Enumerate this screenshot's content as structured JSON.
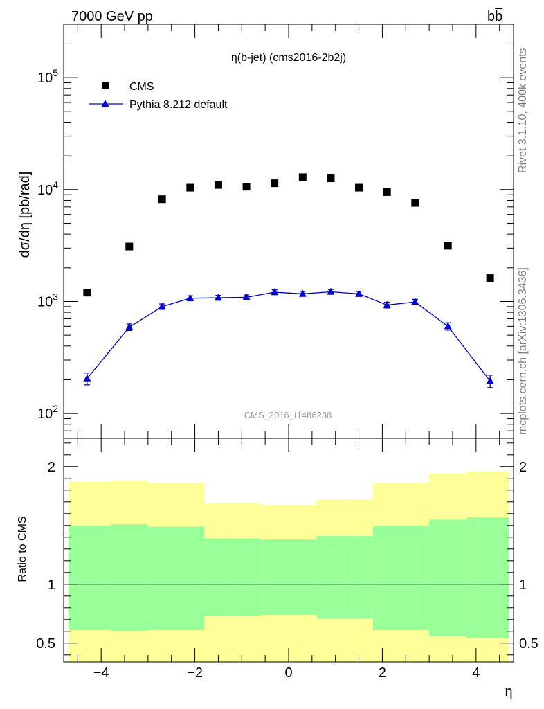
{
  "header": {
    "left": "7000 GeV pp",
    "right_b": "b",
    "right_bbar": "b"
  },
  "side_text": {
    "top": "Rivet 3.1.10,  400k events",
    "bottom": "mcplots.cern.ch [arXiv:1306.3436]"
  },
  "colors": {
    "cms": "#000000",
    "pythia": "#0000cc",
    "band_inner": "#99ff99",
    "band_outer": "#ffff99"
  },
  "chart_data": [
    {
      "type": "scatter",
      "title": "η(b-jet) (cms2016-2b2j)",
      "watermark": "CMS_2016_I1486238",
      "ylabel": "dσ/dη [pb/rad]",
      "yscale": "log",
      "xlim": [
        -4.8,
        4.8
      ],
      "ylim": [
        60,
        300000
      ],
      "yticks": [
        {
          "value": 100,
          "base": "10",
          "exp": "2"
        },
        {
          "value": 1000,
          "base": "10",
          "exp": "3"
        },
        {
          "value": 10000,
          "base": "10",
          "exp": "4"
        },
        {
          "value": 100000,
          "base": "10",
          "exp": "5"
        }
      ],
      "legend": {
        "position": "top-left"
      },
      "series": [
        {
          "name": "CMS",
          "marker": "square",
          "x": [
            -4.3,
            -3.4,
            -2.7,
            -2.1,
            -1.5,
            -0.9,
            -0.3,
            0.3,
            0.9,
            1.5,
            2.1,
            2.7,
            3.4,
            4.3
          ],
          "y": [
            1200,
            3100,
            8200,
            10400,
            11000,
            10600,
            11400,
            12900,
            12600,
            10400,
            9500,
            7600,
            3150,
            1620
          ]
        },
        {
          "name": "Pythia 8.212 default",
          "marker": "triangle",
          "line": true,
          "x": [
            -4.3,
            -3.4,
            -2.7,
            -2.1,
            -1.5,
            -0.9,
            -0.3,
            0.3,
            0.9,
            1.5,
            2.1,
            2.7,
            3.4,
            4.3
          ],
          "y": [
            205,
            590,
            900,
            1070,
            1080,
            1090,
            1210,
            1170,
            1220,
            1170,
            930,
            990,
            600,
            195
          ],
          "yerr": [
            25,
            40,
            50,
            55,
            55,
            55,
            60,
            60,
            60,
            60,
            55,
            55,
            45,
            25
          ]
        }
      ]
    },
    {
      "type": "area",
      "ylabel": "Ratio to CMS",
      "xlabel": "η",
      "xlim": [
        -4.8,
        4.8
      ],
      "ylim": [
        0.34,
        2.24
      ],
      "xticks": [
        -4,
        -2,
        0,
        2,
        4
      ],
      "xtick_labels": [
        "−4",
        "−2",
        "0",
        "2",
        "4"
      ],
      "yticks": [
        0.5,
        1,
        2
      ],
      "ytick_labels": [
        "0.5",
        "1",
        "2"
      ],
      "reference_line": 1,
      "bands": {
        "edges": [
          -4.7,
          -3.8,
          -3.0,
          -2.4,
          -1.8,
          -1.2,
          -0.6,
          0.0,
          0.6,
          1.2,
          1.8,
          2.4,
          3.0,
          3.8,
          4.7
        ],
        "inner_lo": [
          0.61,
          0.6,
          0.61,
          0.61,
          0.73,
          0.73,
          0.74,
          0.74,
          0.71,
          0.71,
          0.61,
          0.61,
          0.56,
          0.54
        ],
        "inner_hi": [
          1.5,
          1.51,
          1.49,
          1.49,
          1.39,
          1.39,
          1.38,
          1.38,
          1.41,
          1.41,
          1.5,
          1.5,
          1.55,
          1.57
        ],
        "outer_hi": [
          1.87,
          1.88,
          1.86,
          1.86,
          1.69,
          1.69,
          1.67,
          1.67,
          1.72,
          1.72,
          1.86,
          1.86,
          1.94,
          1.96
        ],
        "outer_lo": [
          0.3,
          0.3,
          0.3,
          0.3,
          0.3,
          0.3,
          0.3,
          0.3,
          0.3,
          0.3,
          0.3,
          0.3,
          0.3,
          0.3
        ]
      }
    }
  ]
}
